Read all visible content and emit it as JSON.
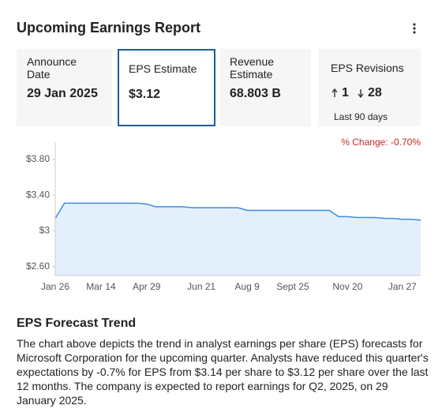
{
  "header": {
    "title": "Upcoming Earnings Report"
  },
  "cards": [
    {
      "label": "Announce Date",
      "value": "29 Jan 2025"
    },
    {
      "label": "EPS Estimate",
      "value": "$3.12"
    },
    {
      "label": "Revenue Estimate",
      "value": "68.803 B"
    },
    {
      "label": "EPS Revisions",
      "up": "1",
      "down": "28",
      "note": "Last 90 days"
    }
  ],
  "chart_data": {
    "type": "area",
    "annotation": "% Change: -0.70%",
    "categories": [
      "Jan 26",
      null,
      null,
      null,
      null,
      "Mar 14",
      null,
      null,
      null,
      null,
      "Apr 29",
      null,
      null,
      null,
      null,
      null,
      "Jun 21",
      null,
      null,
      null,
      null,
      "Aug 9",
      null,
      null,
      null,
      null,
      "Sept 25",
      null,
      null,
      null,
      null,
      null,
      "Nov 20",
      null,
      null,
      null,
      null,
      null,
      "Jan 27",
      null,
      null
    ],
    "values": [
      3.14,
      3.31,
      3.31,
      3.31,
      3.31,
      3.31,
      3.31,
      3.31,
      3.31,
      3.31,
      3.3,
      3.27,
      3.27,
      3.27,
      3.27,
      3.26,
      3.26,
      3.26,
      3.26,
      3.26,
      3.26,
      3.23,
      3.23,
      3.23,
      3.23,
      3.23,
      3.23,
      3.23,
      3.23,
      3.23,
      3.23,
      3.16,
      3.16,
      3.15,
      3.15,
      3.15,
      3.14,
      3.14,
      3.13,
      3.13,
      3.12
    ],
    "color": "#3d8ede",
    "fill": "#e3f0fc",
    "ylim": [
      2.5,
      3.9
    ],
    "yticks": [
      {
        "value": 2.6,
        "label": "$2.60"
      },
      {
        "value": 3,
        "label": "$3"
      },
      {
        "value": 3.4,
        "label": "$3.40"
      },
      {
        "value": 3.8,
        "label": "$3.80"
      }
    ]
  },
  "forecast": {
    "title": "EPS Forecast Trend",
    "text": "The chart above depicts the trend in analyst earnings per share (EPS) forecasts for Microsoft Corporation for the upcoming quarter. Analysts have reduced this quarter's expectations by -0.7% for EPS from $3.14 per share to $3.12 per share over the last 12 months. The company is expected to report earnings for Q2, 2025, on 29 January 2025."
  }
}
